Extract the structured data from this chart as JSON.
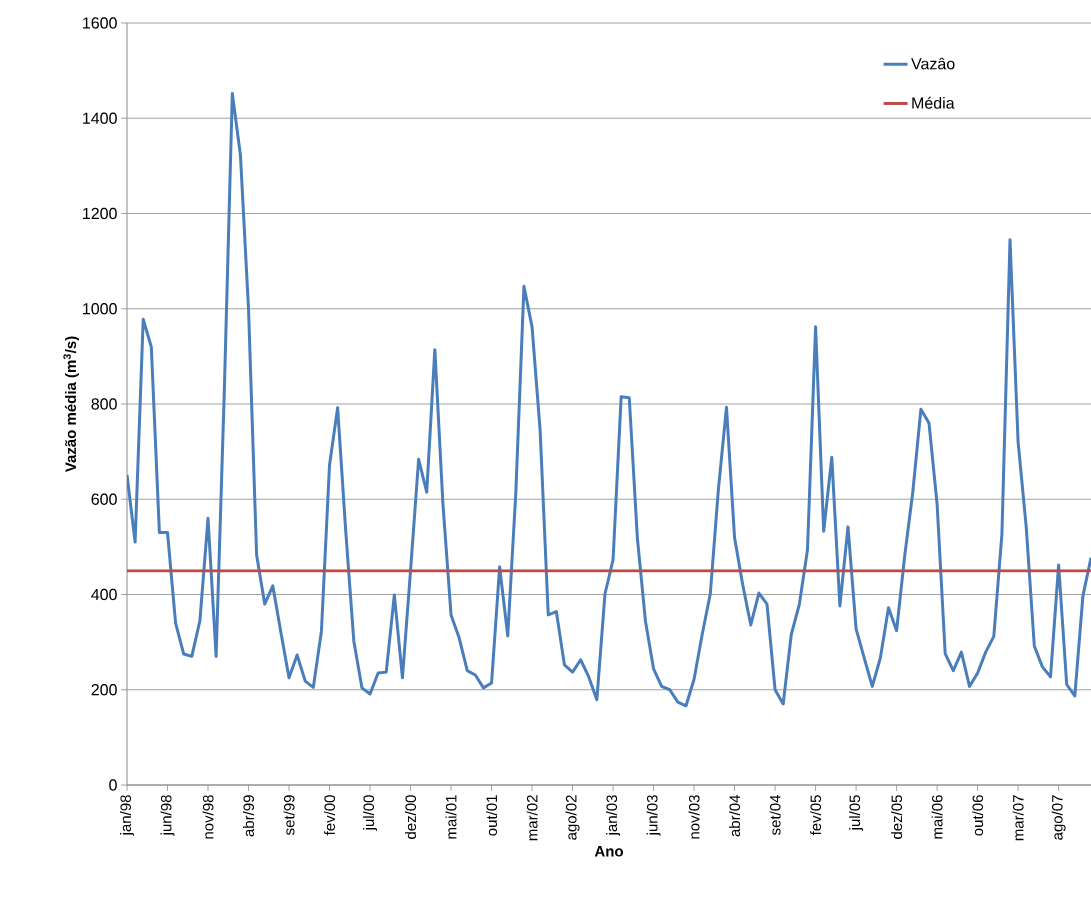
{
  "chart_data": {
    "type": "line",
    "xlabel": "Ano",
    "ylabel": "Vazão média (m$^{3}$/s)",
    "categories": [
      "jan/98",
      null,
      null,
      null,
      null,
      "jun/98",
      null,
      null,
      null,
      null,
      "nov/98",
      null,
      null,
      null,
      null,
      "abr/99",
      null,
      null,
      null,
      null,
      "set/99",
      null,
      null,
      null,
      null,
      "fev/00",
      null,
      null,
      null,
      null,
      "jul/00",
      null,
      null,
      null,
      null,
      "dez/00",
      null,
      null,
      null,
      null,
      "mai/01",
      null,
      null,
      null,
      null,
      "out/01",
      null,
      null,
      null,
      null,
      "mar/02",
      null,
      null,
      null,
      null,
      "ago/02",
      null,
      null,
      null,
      null,
      "jan/03",
      null,
      null,
      null,
      null,
      "jun/03",
      null,
      null,
      null,
      null,
      "nov/03",
      null,
      null,
      null,
      null,
      "abr/04",
      null,
      null,
      null,
      null,
      "set/04",
      null,
      null,
      null,
      null,
      "fev/05",
      null,
      null,
      null,
      null,
      "jul/05",
      null,
      null,
      null,
      null,
      "dez/05",
      null,
      null,
      null,
      null,
      "mai/06",
      null,
      null,
      null,
      null,
      "out/06",
      null,
      null,
      null,
      null,
      "mar/07",
      null,
      null,
      null,
      null,
      "ago/07",
      null,
      null,
      null,
      null
    ],
    "series": [
      {
        "name": "Vazâo",
        "color": "#4a7ebb",
        "values": [
          651,
          510,
          978,
          920,
          530,
          530,
          340,
          275,
          270,
          345,
          560,
          270,
          820,
          1452,
          1323,
          1000,
          483,
          380,
          418,
          320,
          225,
          273,
          218,
          205,
          323,
          672,
          792,
          533,
          302,
          204,
          191,
          235,
          237,
          399,
          225,
          450,
          684,
          615,
          914,
          590,
          357,
          309,
          240,
          231,
          204,
          214,
          458,
          313,
          615,
          1047,
          962,
          744,
          357,
          364,
          252,
          237,
          263,
          227,
          179,
          401,
          473,
          815,
          813,
          519,
          344,
          244,
          207,
          200,
          174,
          166,
          222,
          316,
          401,
          620,
          793,
          519,
          421,
          336,
          403,
          380,
          200,
          170,
          316,
          380,
          494,
          962,
          533,
          688,
          376,
          542,
          328,
          267,
          207,
          267,
          372,
          324,
          481,
          615,
          789,
          760,
          590,
          276,
          240,
          279,
          207,
          235,
          279,
          312,
          526,
          1145,
          720,
          542,
          292,
          248,
          227,
          462,
          211,
          187,
          397,
          477
        ]
      }
    ],
    "ref_lines": [
      {
        "axis": "y",
        "value": 450,
        "label": "Média",
        "color": "#be4b48"
      }
    ],
    "ylim": [
      0,
      1600
    ],
    "yticks": [
      0,
      200,
      400,
      600,
      800,
      1000,
      1200,
      1400,
      1600
    ],
    "grid": "y",
    "legend": "top right"
  }
}
